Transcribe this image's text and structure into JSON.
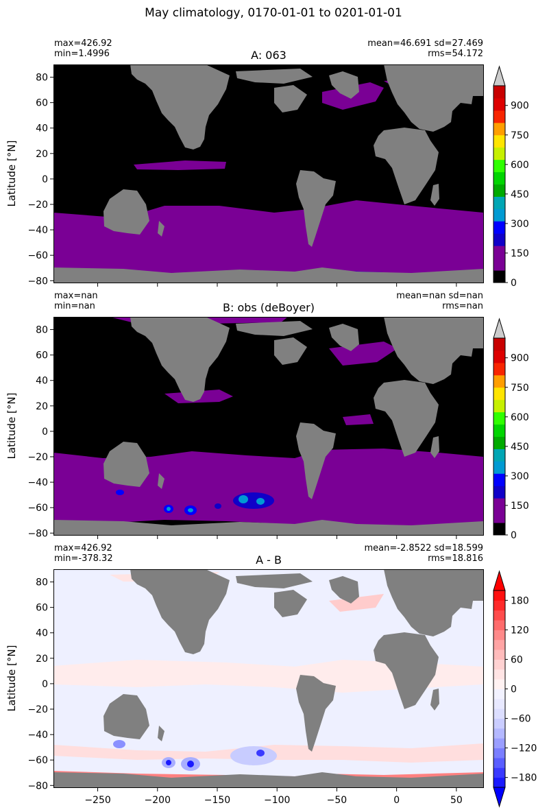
{
  "figure": {
    "suptitle": "May climatology, 0170-01-01 to 0201-01-01",
    "ylabel": "Latitude [°N]",
    "lat_ticks": [
      "80",
      "60",
      "40",
      "20",
      "0",
      "−20",
      "−40",
      "−60",
      "−80"
    ],
    "lon_ticks": [
      "−250",
      "−200",
      "−150",
      "−100",
      "−50",
      "0",
      "50"
    ]
  },
  "colors": {
    "land": "#808080",
    "sequential": [
      "#000000",
      "#7a0095",
      "#7a0095",
      "#1000c8",
      "#0000ff",
      "#009ad2",
      "#00a6b4",
      "#00aa00",
      "#00d500",
      "#2fff00",
      "#c6f000",
      "#ffe500",
      "#ff9e00",
      "#f82500",
      "#dd0000",
      "#c80000"
    ],
    "sequential_over": "#cccccc",
    "diverging_over": "#ff0000",
    "diverging_under": "#0000ff"
  },
  "chart_data": [
    {
      "type": "heatmap",
      "title": "A: 063",
      "stats_left": [
        "max=426.92",
        "min=1.4996"
      ],
      "stats_right": [
        "mean=46.691 sd=27.469",
        "rms=54.172"
      ],
      "xlim": [
        -287,
        73
      ],
      "ylim": [
        -82,
        90
      ],
      "colorbar": {
        "ticks": [
          "0",
          "150",
          "300",
          "450",
          "600",
          "750",
          "900"
        ],
        "range": [
          0,
          1000
        ],
        "levels": 16,
        "extend": "max"
      }
    },
    {
      "type": "heatmap",
      "title": "B: obs (deBoyer)",
      "stats_left": [
        "max=nan",
        "min=nan"
      ],
      "stats_right": [
        "mean=nan sd=nan",
        "rms=nan"
      ],
      "xlim": [
        -287,
        73
      ],
      "ylim": [
        -82,
        90
      ],
      "colorbar": {
        "ticks": [
          "0",
          "150",
          "300",
          "450",
          "600",
          "750",
          "900"
        ],
        "range": [
          0,
          1000
        ],
        "levels": 16,
        "extend": "max"
      }
    },
    {
      "type": "heatmap",
      "title": "A - B",
      "stats_left": [
        "max=426.92",
        "min=-378.32"
      ],
      "stats_right": [
        "mean=-2.8522 sd=18.599",
        "rms=18.816"
      ],
      "xlim": [
        -287,
        73
      ],
      "ylim": [
        -82,
        90
      ],
      "colorbar": {
        "ticks": [
          "180",
          "120",
          "60",
          "0",
          "−60",
          "−120",
          "−180"
        ],
        "range": [
          -200,
          200
        ],
        "levels": 20,
        "extend": "both"
      }
    }
  ]
}
